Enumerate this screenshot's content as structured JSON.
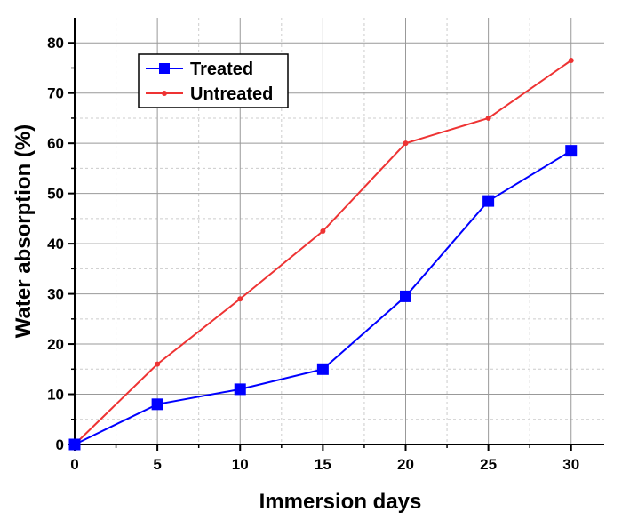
{
  "chart_data": {
    "type": "line",
    "title": "",
    "xlabel": "Immersion days",
    "ylabel": "Water absorption (%)",
    "x": [
      0,
      5,
      10,
      15,
      20,
      25,
      30
    ],
    "xlim": [
      0,
      32
    ],
    "ylim": [
      0,
      85
    ],
    "xticks": [
      0,
      5,
      10,
      15,
      20,
      25,
      30
    ],
    "yticks": [
      0,
      10,
      20,
      30,
      40,
      50,
      60,
      70,
      80
    ],
    "grid": "major solid, minor dashed",
    "legend_position": "top-left",
    "series": [
      {
        "name": "Treated",
        "color": "#0000ff",
        "marker": "square",
        "values": [
          0,
          8,
          11,
          15,
          29.5,
          48.5,
          58.5
        ]
      },
      {
        "name": "Untreated",
        "color": "#ee3333",
        "marker": "circle",
        "values": [
          0,
          16,
          29,
          42.5,
          60,
          65,
          76.5
        ]
      }
    ]
  }
}
